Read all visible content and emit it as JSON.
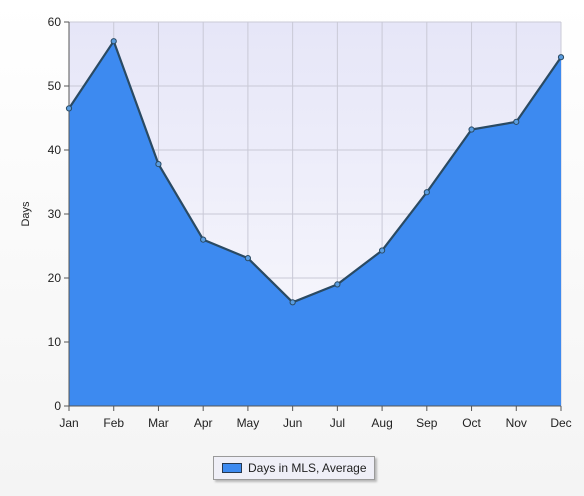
{
  "chart_data": {
    "type": "area",
    "categories": [
      "Jan",
      "Feb",
      "Mar",
      "Apr",
      "May",
      "Jun",
      "Jul",
      "Aug",
      "Sep",
      "Oct",
      "Nov",
      "Dec"
    ],
    "series": [
      {
        "name": "Days in MLS, Average",
        "values": [
          46.5,
          57,
          37.8,
          26,
          23.1,
          16.2,
          19,
          24.3,
          33.4,
          43.2,
          44.4,
          54.5
        ]
      }
    ],
    "ylabel": "Days",
    "xlabel": "",
    "ylim": [
      0,
      60
    ],
    "yticks": [
      0,
      10,
      20,
      30,
      40,
      50,
      60
    ],
    "grid": true,
    "legend_position": "bottom-center",
    "colors": {
      "fill": "#3d8af0",
      "line": "#2a4a63",
      "marker": "#5a9de0",
      "plot_bg_top": "#e6e6f8",
      "plot_bg_bottom": "#fafafd",
      "grid": "#c9c9d6"
    }
  }
}
